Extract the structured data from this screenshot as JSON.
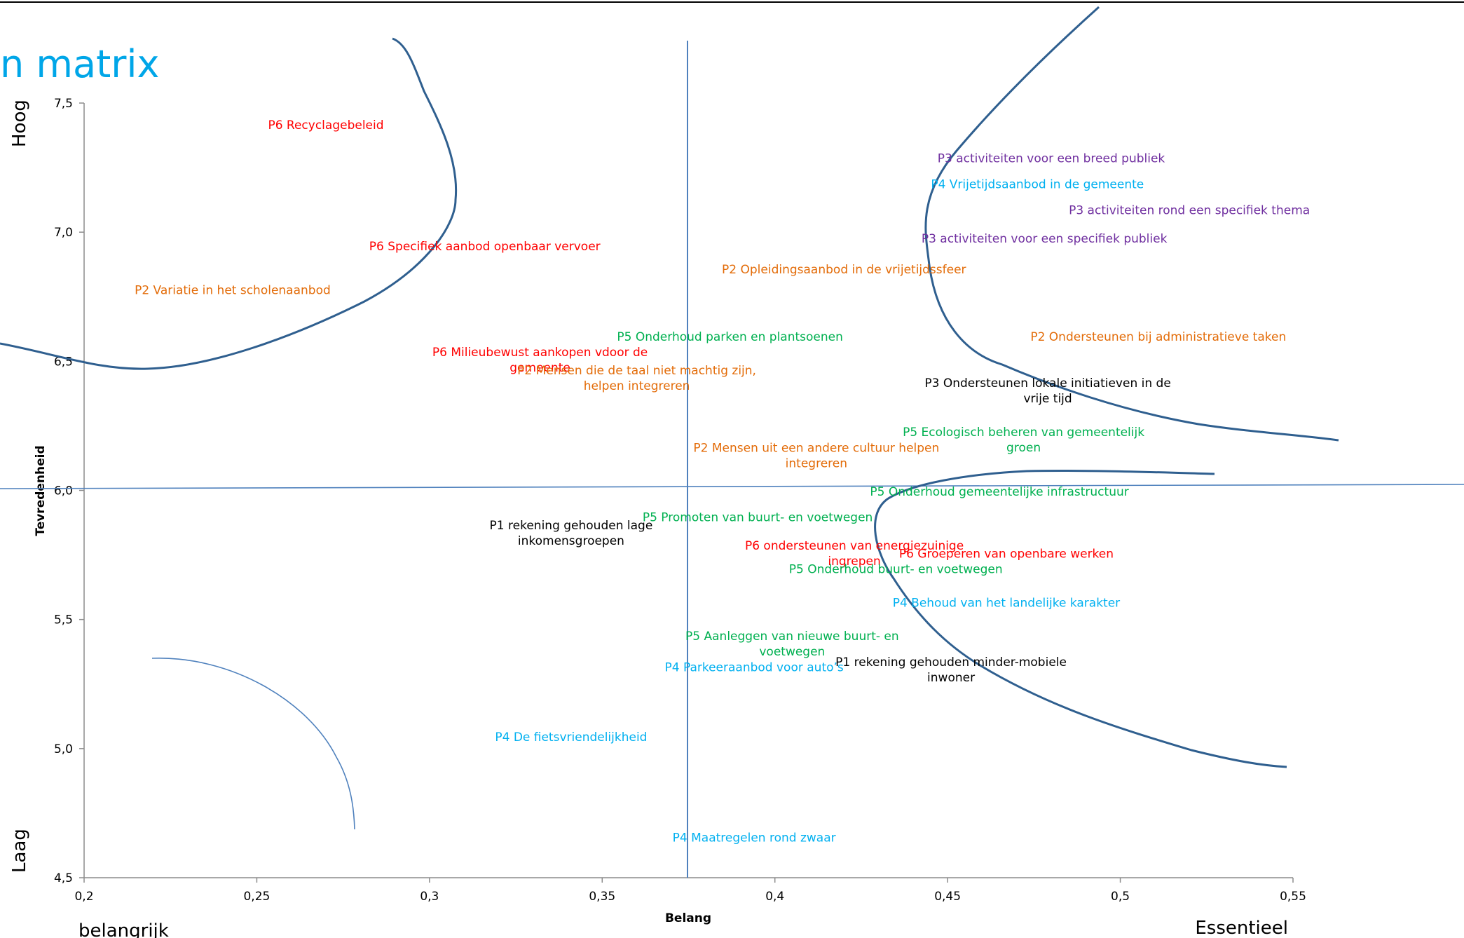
{
  "slide": {
    "title_fragment": "n matrix",
    "title_color": "#00a6e8",
    "corner_high": "Hoog",
    "corner_low": "Laag",
    "corner_left": "belangrijk",
    "corner_right": "Essentieel"
  },
  "colors": {
    "axis": "#4f81bd",
    "curve": "#2f5f8f",
    "red": "#ff0000",
    "orange": "#e36c09",
    "green": "#00b050",
    "purple": "#7030a0",
    "cyan": "#00b0f0",
    "black": "#000000"
  },
  "chart_data": {
    "type": "scatter",
    "xlabel": "Belang",
    "ylabel": "Tevredenheid",
    "xlim": [
      0.2,
      0.55
    ],
    "ylim": [
      4.5,
      7.5
    ],
    "x_ticks": [
      "0,2",
      "0,25",
      "0,3",
      "0,35",
      "0,4",
      "0,45",
      "0,5",
      "0,55"
    ],
    "y_ticks": [
      "4,5",
      "5,0",
      "5,5",
      "6,0",
      "6,5",
      "7,0",
      "7,5"
    ],
    "crosshair": {
      "x": 0.375,
      "y": 6.0
    },
    "points": [
      {
        "lines": [
          "P6 Recyclagebeleid"
        ],
        "x": 0.27,
        "y": 7.4,
        "color": "red"
      },
      {
        "lines": [
          "P6 Specifiek aanbod openbaar vervoer"
        ],
        "x": 0.316,
        "y": 6.93,
        "color": "red"
      },
      {
        "lines": [
          "P2 Variatie in het scholenaanbod"
        ],
        "x": 0.243,
        "y": 6.76,
        "color": "orange"
      },
      {
        "lines": [
          "P6 Milieubewust aankopen vdoor de",
          "gemeente"
        ],
        "x": 0.332,
        "y": 6.52,
        "color": "red"
      },
      {
        "lines": [
          "P3 activiteiten  voor een breed publiek"
        ],
        "x": 0.48,
        "y": 7.27,
        "color": "purple"
      },
      {
        "lines": [
          "P4 Vrijetijdsaanbod in de gemeente"
        ],
        "x": 0.476,
        "y": 7.17,
        "color": "cyan"
      },
      {
        "lines": [
          "P3 activiteiten rond een specifiek thema"
        ],
        "x": 0.52,
        "y": 7.07,
        "color": "purple"
      },
      {
        "lines": [
          "P3 activiteiten voor een specifiek publiek"
        ],
        "x": 0.478,
        "y": 6.96,
        "color": "purple"
      },
      {
        "lines": [
          "P2 Opleidingsaanbod in de vrijetijdssfeer"
        ],
        "x": 0.42,
        "y": 6.84,
        "color": "orange"
      },
      {
        "lines": [
          "P5 Onderhoud parken en plantsoenen"
        ],
        "x": 0.387,
        "y": 6.58,
        "color": "green"
      },
      {
        "lines": [
          "P2 Ondersteunen bij administratieve taken"
        ],
        "x": 0.511,
        "y": 6.58,
        "color": "orange"
      },
      {
        "lines": [
          "P2 Mensen die de taal niet machtig zijn,",
          "helpen integreren"
        ],
        "x": 0.36,
        "y": 6.45,
        "color": "orange"
      },
      {
        "lines": [
          "P3 Ondersteunen lokale initiatieven in de",
          "vrije tijd"
        ],
        "x": 0.479,
        "y": 6.4,
        "color": "black"
      },
      {
        "lines": [
          "P5 Ecologisch beheren van gemeentelijk",
          "groen"
        ],
        "x": 0.472,
        "y": 6.21,
        "color": "green"
      },
      {
        "lines": [
          "P2 Mensen uit een andere cultuur helpen",
          "integreren"
        ],
        "x": 0.412,
        "y": 6.15,
        "color": "orange"
      },
      {
        "lines": [
          "P5 Onderhoud gemeentelijke infrastructuur"
        ],
        "x": 0.465,
        "y": 5.98,
        "color": "green"
      },
      {
        "lines": [
          "P1 rekening gehouden lage",
          "inkomensgroepen"
        ],
        "x": 0.341,
        "y": 5.85,
        "color": "black"
      },
      {
        "lines": [
          "P5 Promoten van buurt- en voetwegen"
        ],
        "x": 0.395,
        "y": 5.88,
        "color": "green"
      },
      {
        "lines": [
          "P6 ondersteunen van energiezuinige",
          "ingrepen"
        ],
        "x": 0.423,
        "y": 5.77,
        "color": "red"
      },
      {
        "lines": [
          "P6 Groeperen van openbare werken"
        ],
        "x": 0.467,
        "y": 5.74,
        "color": "red"
      },
      {
        "lines": [
          "P5 Onderhoud buurt- en voetwegen"
        ],
        "x": 0.435,
        "y": 5.68,
        "color": "green"
      },
      {
        "lines": [
          "P4 Behoud van het landelijke karakter"
        ],
        "x": 0.467,
        "y": 5.55,
        "color": "cyan"
      },
      {
        "lines": [
          "P5 Aanleggen van nieuwe buurt- en",
          "voetwegen"
        ],
        "x": 0.405,
        "y": 5.42,
        "color": "green"
      },
      {
        "lines": [
          "P1  rekening gehouden  minder-mobiele",
          "inwoner"
        ],
        "x": 0.451,
        "y": 5.32,
        "color": "black"
      },
      {
        "lines": [
          "P4 Parkeeraanbod voor auto’s"
        ],
        "x": 0.394,
        "y": 5.3,
        "color": "cyan"
      },
      {
        "lines": [
          "P4 De fietsvriendelijkheid"
        ],
        "x": 0.341,
        "y": 5.03,
        "color": "cyan"
      },
      {
        "lines": [
          "P4 Maatregelen rond zwaar"
        ],
        "x": 0.394,
        "y": 4.64,
        "color": "cyan"
      }
    ]
  }
}
